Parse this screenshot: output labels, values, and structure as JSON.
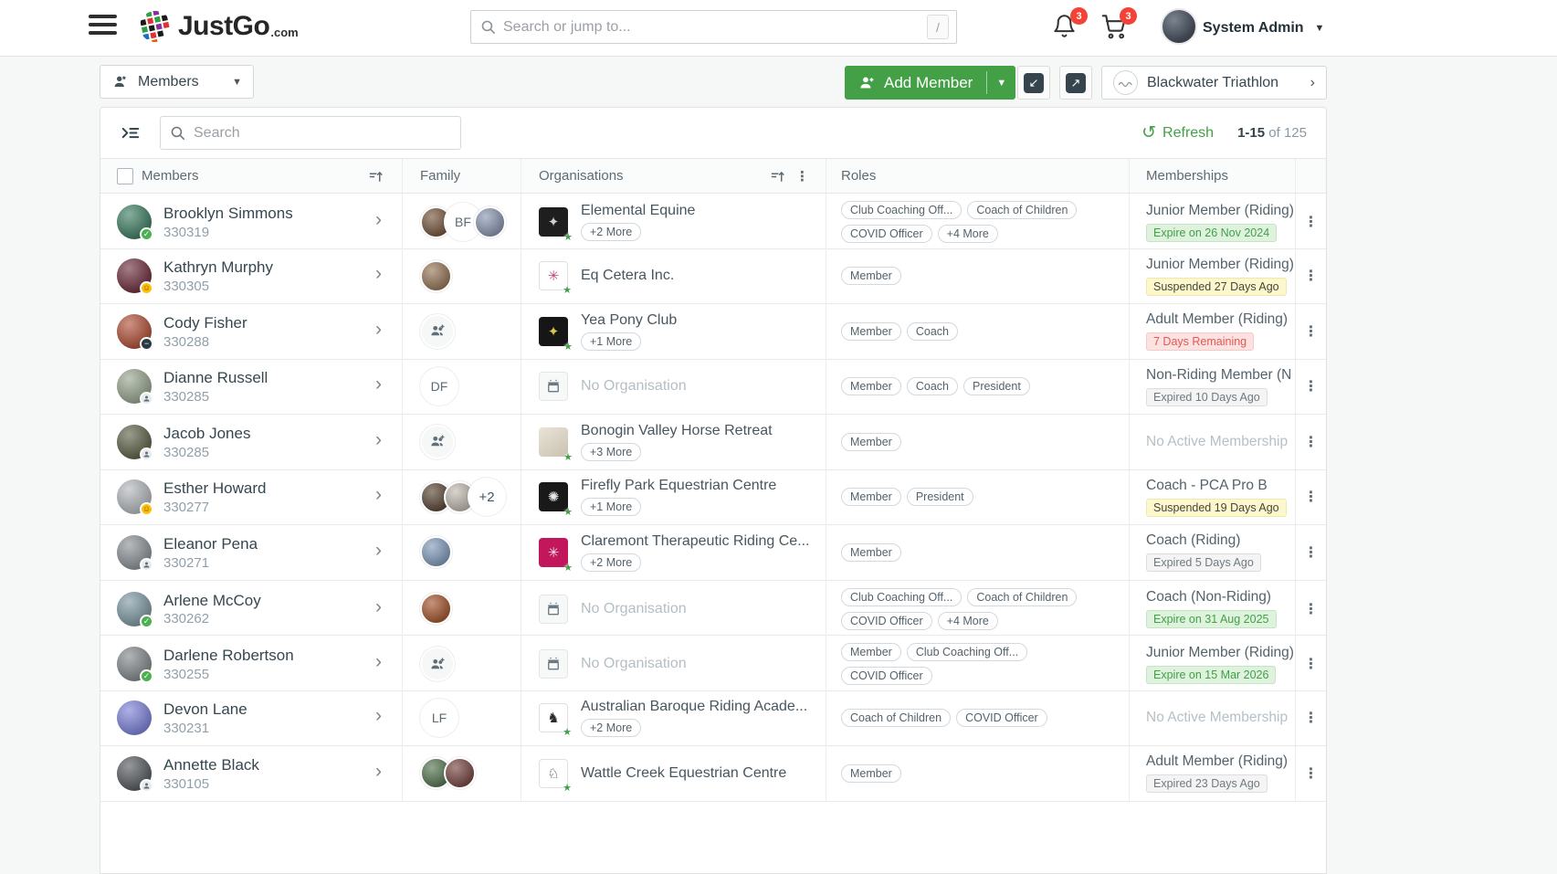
{
  "colors": {
    "accent_green": "#43a047",
    "badge_red": "#f44336"
  },
  "topbar": {
    "brand": "JustGo",
    "brand_tld": ".com",
    "search": {
      "placeholder": "Search or jump to...",
      "shortcut": "/"
    },
    "notifications_count": "3",
    "cart_count": "3",
    "user_name": "System Admin"
  },
  "toolbar": {
    "view_selector_label": "Members",
    "add_member_label": "Add Member",
    "org_selector_label": "Blackwater Triathlon"
  },
  "listbar": {
    "search_placeholder": "Search",
    "refresh_label": "Refresh",
    "range": "1-15",
    "of_total": "of 125"
  },
  "table": {
    "headers": {
      "members": "Members",
      "family": "Family",
      "organisations": "Organisations",
      "roles": "Roles",
      "memberships": "Memberships"
    },
    "rows": [
      {
        "name": "Brooklyn Simmons",
        "id": "330319",
        "avatar_color": "#3e7d63",
        "avatar_badge": "check",
        "family": [
          {
            "type": "photo",
            "color": "#7a5a42"
          },
          {
            "type": "initials",
            "text": "BF"
          },
          {
            "type": "photo",
            "color": "#8f9ab5"
          }
        ],
        "org": {
          "name": "Elemental Equine",
          "more": "+2 More",
          "kind": "dark",
          "bg": "#1e1e1e",
          "mark": "✦",
          "mark_color": "#cfcfcf",
          "starred": true
        },
        "roles": [
          "Club Coaching Off...",
          "Coach of Children",
          "COVID Officer",
          "+4 More"
        ],
        "membership": {
          "title": "Junior Member (Riding)",
          "status": "Expire on 26 Nov 2024",
          "status_type": "green"
        }
      },
      {
        "name": "Kathryn Murphy",
        "id": "330305",
        "avatar_color": "#6e2f3e",
        "avatar_badge": "emoji",
        "family": [
          {
            "type": "photo",
            "color": "#9b7b5c"
          }
        ],
        "org": {
          "name": "Eq Cetera Inc.",
          "more": "",
          "kind": "lite",
          "bg": "#ffffff",
          "mark": "✳",
          "mark_color": "#c2457c",
          "starred": true
        },
        "roles": [
          "Member"
        ],
        "membership": {
          "title": "Junior Member (Riding)",
          "status": "Suspended 27 Days Ago",
          "status_type": "yellow"
        }
      },
      {
        "name": "Cody Fisher",
        "id": "330288",
        "avatar_color": "#b05038",
        "avatar_badge": "minus",
        "family": [
          {
            "type": "add"
          }
        ],
        "org": {
          "name": "Yea Pony Club",
          "more": "+1 More",
          "kind": "dark",
          "bg": "#161616",
          "mark": "✦",
          "mark_color": "#d8c84a",
          "starred": true
        },
        "roles": [
          "Member",
          "Coach"
        ],
        "membership": {
          "title": "Adult Member (Riding)",
          "status": "7 Days Remaining",
          "status_type": "red"
        }
      },
      {
        "name": "Dianne Russell",
        "id": "330285",
        "avatar_color": "#97a58f",
        "avatar_badge": "person",
        "family": [
          {
            "type": "initials",
            "text": "DF"
          }
        ],
        "org": {
          "name": "No Organisation",
          "none": true
        },
        "roles": [
          "Member",
          "Coach",
          "President"
        ],
        "membership": {
          "title": "Non-Riding Member (N",
          "status": "Expired 10 Days Ago",
          "status_type": "gray"
        }
      },
      {
        "name": "Jacob Jones",
        "id": "330285",
        "avatar_color": "#5d6247",
        "avatar_badge": "person",
        "family": [
          {
            "type": "add"
          }
        ],
        "org": {
          "name": "Bonogin Valley Horse Retreat",
          "more": "+3 More",
          "kind": "photo",
          "bg": "#ddd8cc",
          "mark": "",
          "mark_color": "#8a8577",
          "starred": true
        },
        "roles": [
          "Member"
        ],
        "membership": {
          "title": "No Active Membership",
          "none": true
        }
      },
      {
        "name": "Esther Howard",
        "id": "330277",
        "avatar_color": "#b4b8bc",
        "avatar_badge": "emoji",
        "family": [
          {
            "type": "photo",
            "color": "#5d4a39"
          },
          {
            "type": "photo",
            "color": "#c4beb4"
          },
          {
            "type": "count",
            "text": "+2"
          }
        ],
        "org": {
          "name": "Firefly Park Equestrian Centre",
          "more": "+1 More",
          "kind": "dark",
          "bg": "#191919",
          "mark": "✺",
          "mark_color": "#e8e8e8",
          "starred": true
        },
        "roles": [
          "Member",
          "President"
        ],
        "membership": {
          "title": "Coach - PCA Pro B",
          "status": "Suspended 19 Days Ago",
          "status_type": "yellow"
        }
      },
      {
        "name": "Eleanor Pena",
        "id": "330271",
        "avatar_color": "#8b9196",
        "avatar_badge": "person",
        "family": [
          {
            "type": "photo",
            "color": "#86a0c0"
          }
        ],
        "org": {
          "name": "Claremont Therapeutic Riding Ce...",
          "more": "+2 More",
          "kind": "dark",
          "bg": "#c2185b",
          "mark": "✳",
          "mark_color": "#f7dfe8",
          "starred": true
        },
        "roles": [
          "Member"
        ],
        "membership": {
          "title": "Coach (Riding)",
          "status": "Expired 5 Days Ago",
          "status_type": "gray"
        }
      },
      {
        "name": "Arlene McCoy",
        "id": "330262",
        "avatar_color": "#7e98a3",
        "avatar_badge": "check",
        "family": [
          {
            "type": "photo",
            "color": "#a85a32"
          }
        ],
        "org": {
          "name": "No Organisation",
          "none": true
        },
        "roles": [
          "Club Coaching Off...",
          "Coach of Children",
          "COVID Officer",
          "+4 More"
        ],
        "membership": {
          "title": "Coach (Non-Riding)",
          "status": "Expire on 31 Aug 2025",
          "status_type": "green"
        }
      },
      {
        "name": "Darlene Robertson",
        "id": "330255",
        "avatar_color": "#84888b",
        "avatar_badge": "check",
        "family": [
          {
            "type": "add"
          }
        ],
        "org": {
          "name": "No Organisation",
          "none": true
        },
        "roles": [
          "Member",
          "Club Coaching Off...",
          "COVID Officer"
        ],
        "membership": {
          "title": "Junior Member (Riding)",
          "status": "Expire on 15 Mar 2026",
          "status_type": "green"
        }
      },
      {
        "name": "Devon Lane",
        "id": "330231",
        "avatar_color": "#7d82d8",
        "avatar_badge": "",
        "family": [
          {
            "type": "initials",
            "text": "LF"
          }
        ],
        "org": {
          "name": "Australian Baroque Riding Acade...",
          "more": "+2 More",
          "kind": "lite",
          "bg": "#ffffff",
          "mark": "♞",
          "mark_color": "#2b2b2b",
          "starred": true
        },
        "roles": [
          "Coach of Children",
          "COVID Officer"
        ],
        "membership": {
          "title": "No Active Membership",
          "none": true
        }
      },
      {
        "name": "Annette Black",
        "id": "330105",
        "avatar_color": "#565a5f",
        "avatar_badge": "person",
        "family": [
          {
            "type": "photo",
            "color": "#587a53"
          },
          {
            "type": "photo",
            "color": "#7c4a47"
          }
        ],
        "org": {
          "name": "Wattle Creek Equestrian Centre",
          "more": "",
          "kind": "lite",
          "bg": "#ffffff",
          "mark": "♘",
          "mark_color": "#3a3a3a",
          "starred": true
        },
        "roles": [
          "Member"
        ],
        "membership": {
          "title": "Adult Member (Riding)",
          "status": "Expired 23 Days Ago",
          "status_type": "gray"
        }
      }
    ]
  }
}
